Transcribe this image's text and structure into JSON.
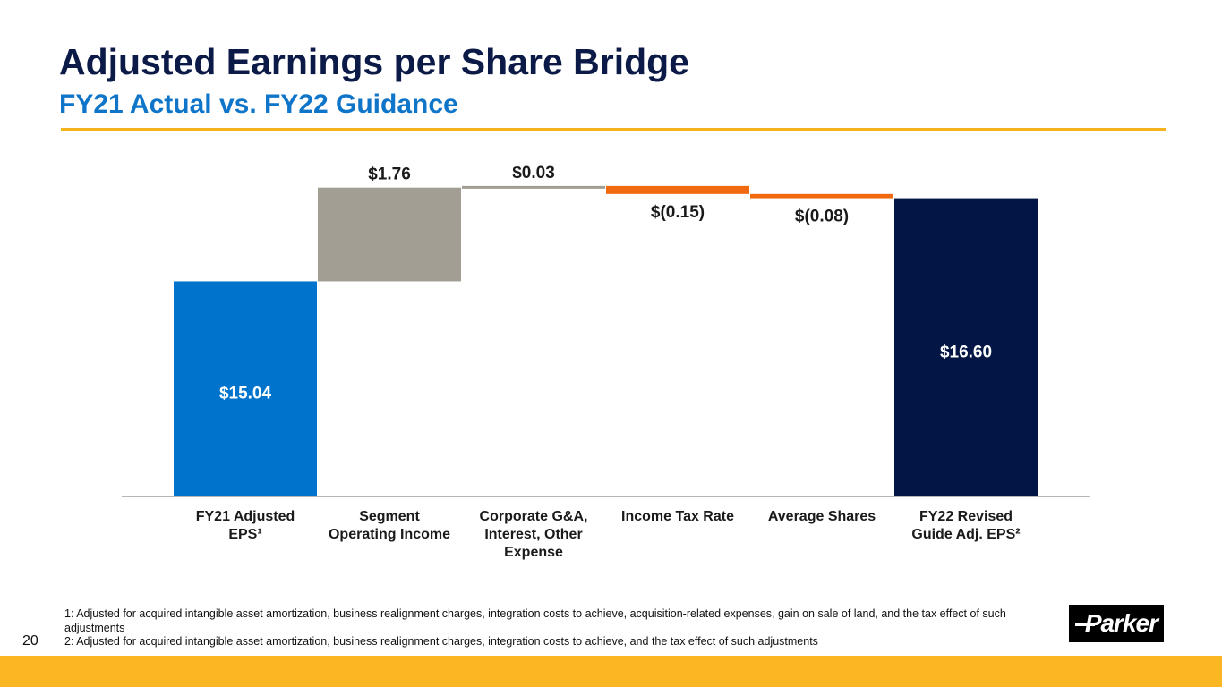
{
  "slide": {
    "title": "Adjusted Earnings per Share Bridge",
    "subtitle": "FY21 Actual vs. FY22 Guidance",
    "page_number": "20",
    "footnotes": [
      "1: Adjusted for acquired intangible asset amortization, business realignment charges, integration costs to achieve, acquisition-related expenses, gain on sale of land, and the tax effect of such adjustments",
      "2: Adjusted for acquired intangible asset amortization, business realignment charges, integration costs to achieve, and the tax effect of such adjustments"
    ],
    "logo_text": "Parker",
    "colors": {
      "title": "#0b1a47",
      "subtitle": "#0f75c8",
      "accent_gold": "#fbb622"
    }
  },
  "chart_data": {
    "type": "bar",
    "subtype": "waterfall",
    "title": "Adjusted Earnings per Share Bridge",
    "subtitle": "FY21 Actual vs. FY22 Guidance",
    "xlabel": "",
    "ylabel": "",
    "ylim": [
      11.0,
      17.5
    ],
    "grid": false,
    "legend": "none",
    "categories": [
      "FY21 Adjusted EPS¹",
      "Segment Operating Income",
      "Corporate G&A, Interest, Other Expense",
      "Income Tax Rate",
      "Average Shares",
      "FY22 Revised Guide Adj. EPS²"
    ],
    "category_lines": [
      [
        "FY21 Adjusted",
        "EPS¹"
      ],
      [
        "Segment",
        "Operating Income"
      ],
      [
        "Corporate G&A,",
        "Interest, Other",
        "Expense"
      ],
      [
        "Income Tax Rate"
      ],
      [
        "Average Shares"
      ],
      [
        "FY22 Revised",
        "Guide Adj. EPS²"
      ]
    ],
    "steps": [
      {
        "kind": "total",
        "value": 15.04,
        "label": "$15.04",
        "color": "#0074cc",
        "label_color": "#ffffff"
      },
      {
        "kind": "delta",
        "value": 1.76,
        "label": "$1.76",
        "color": "#a39e93",
        "label_color": "#1a1a1a"
      },
      {
        "kind": "delta",
        "value": 0.03,
        "label": "$0.03",
        "color": "#a39e93",
        "label_color": "#1a1a1a"
      },
      {
        "kind": "delta",
        "value": -0.15,
        "label": "$(0.15)",
        "color": "#f26a10",
        "label_color": "#1a1a1a"
      },
      {
        "kind": "delta",
        "value": -0.08,
        "label": "$(0.08)",
        "color": "#f26a10",
        "label_color": "#1a1a1a"
      },
      {
        "kind": "total",
        "value": 16.6,
        "label": "$16.60",
        "color": "#021544",
        "label_color": "#ffffff"
      }
    ],
    "axis_color": "#b5b5b5"
  }
}
